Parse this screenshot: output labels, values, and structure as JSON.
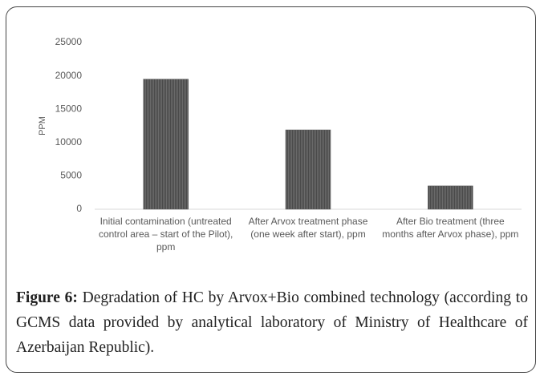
{
  "chart_data": {
    "type": "bar",
    "y_label": "PPM",
    "categories": [
      "Initial contamination (untreated control area – start of the Pilot), ppm",
      "After Arvox treatment phase (one week after start), ppm",
      "After Bio treatment (three months after Arvox phase), ppm"
    ],
    "values": [
      19500,
      11900,
      3500
    ],
    "color": "#5a5a5a",
    "ylim": [
      0,
      25000
    ],
    "yticks": [
      0,
      5000,
      10000,
      15000,
      20000,
      25000
    ],
    "grid": false
  },
  "figure": {
    "label": "Figure 6:",
    "text": "Degradation of HC by Arvox+Bio combined technology (according to GCMS data provided by analytical laboratory of Ministry of Healthcare of Azerbaijan Republic)."
  }
}
